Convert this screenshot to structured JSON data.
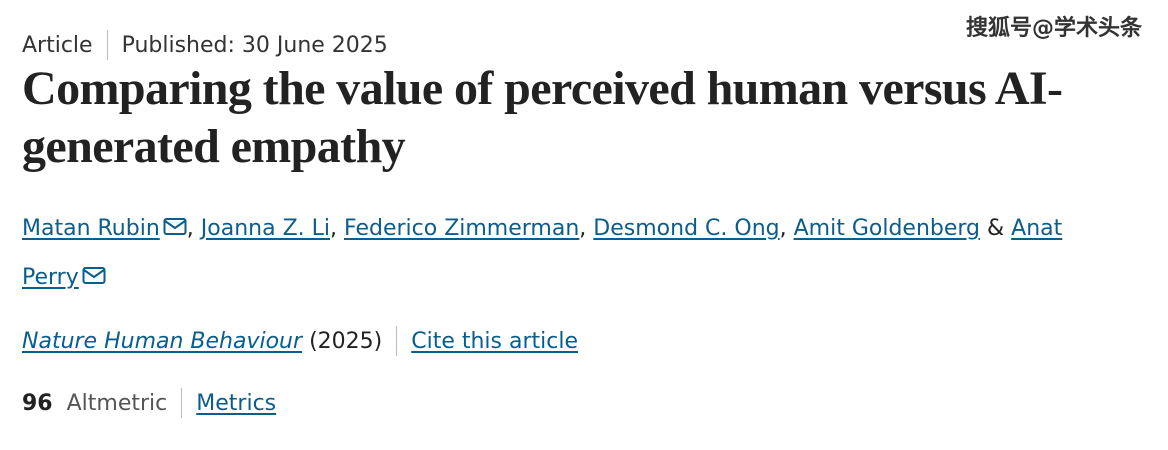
{
  "header": {
    "article_type": "Article",
    "published": "Published: 30 June 2025"
  },
  "title": "Comparing the value of perceived human versus AI-generated empathy",
  "authors": [
    {
      "name": "Matan Rubin",
      "email": true
    },
    {
      "name": "Joanna Z. Li",
      "email": false
    },
    {
      "name": "Federico Zimmerman",
      "email": false
    },
    {
      "name": "Desmond C. Ong",
      "email": false
    },
    {
      "name": "Amit Goldenberg",
      "email": false
    },
    {
      "name": "Anat Perry",
      "email": true
    }
  ],
  "author_separator": ",",
  "author_last_separator": "&",
  "citation": {
    "journal": "Nature Human Behaviour",
    "year": "(2025)",
    "cite_link": "Cite this article"
  },
  "metrics": {
    "score": "96",
    "score_label": "Altmetric",
    "metrics_link": "Metrics"
  },
  "watermark": "搜狐号@学术头条"
}
